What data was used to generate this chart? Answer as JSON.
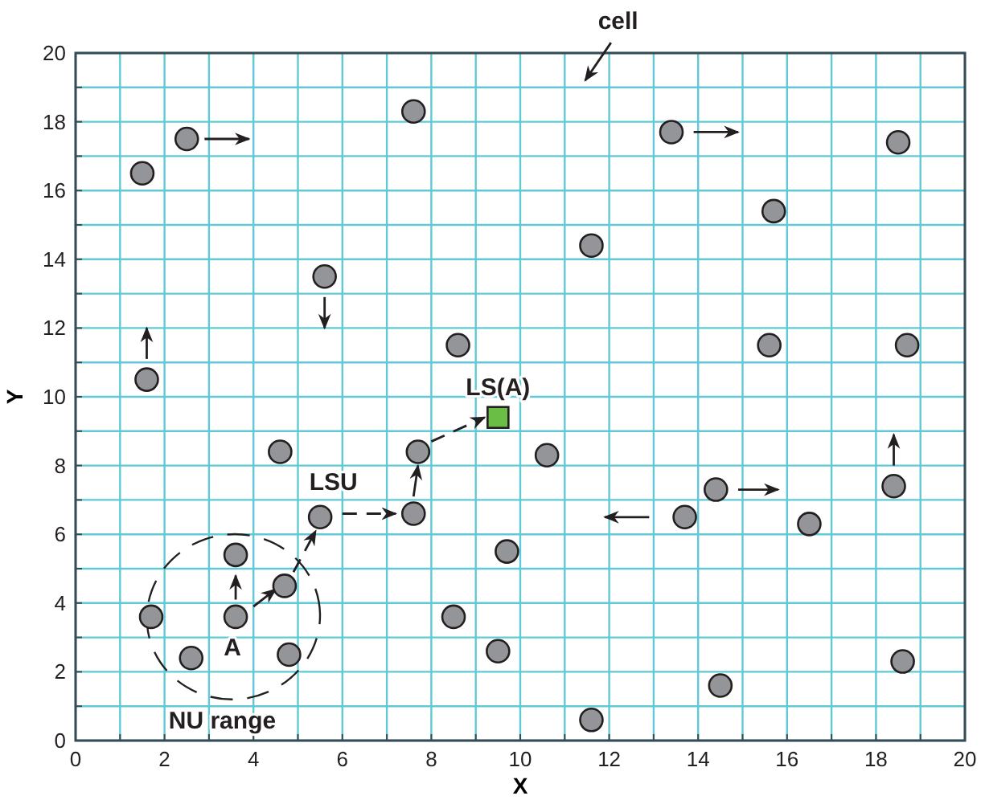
{
  "chart_data": {
    "type": "scatter",
    "xlabel": "X",
    "ylabel": "Y",
    "xlim": [
      0,
      20
    ],
    "ylim": [
      0,
      20
    ],
    "xticks": [
      0,
      {
        "value": 1,
        "label": null
      },
      2,
      {
        "value": 3,
        "label": null
      },
      4,
      {
        "value": 5,
        "label": null
      },
      6,
      {
        "value": 7,
        "label": null
      },
      8,
      {
        "value": 9,
        "label": null
      },
      10,
      {
        "value": 11,
        "label": null
      },
      12,
      {
        "value": 13,
        "label": null
      },
      14,
      {
        "value": 15,
        "label": null
      },
      16,
      {
        "value": 17,
        "label": null
      },
      18,
      {
        "value": 19,
        "label": null
      },
      20
    ],
    "yticks": [
      0,
      {
        "value": 1,
        "label": null
      },
      2,
      {
        "value": 3,
        "label": null
      },
      4,
      {
        "value": 5,
        "label": null
      },
      6,
      {
        "value": 7,
        "label": null
      },
      8,
      {
        "value": 9,
        "label": null
      },
      10,
      {
        "value": 11,
        "label": null
      },
      12,
      {
        "value": 13,
        "label": null
      },
      14,
      {
        "value": 15,
        "label": null
      },
      16,
      {
        "value": 17,
        "label": null
      },
      18,
      {
        "value": 19,
        "label": null
      },
      20
    ],
    "grid": true,
    "series": [
      {
        "color": "#939598",
        "marker": "circle",
        "x": [
          1.5,
          2.5,
          7.6,
          5.6,
          1.6,
          8.6,
          4.6,
          7.7,
          10.6,
          5.5,
          7.6,
          3.6,
          4.7,
          3.6,
          1.7,
          2.6,
          4.8,
          8.5,
          9.7,
          9.5,
          11.6,
          11.6,
          13.4,
          18.5,
          15.7,
          15.6,
          18.7,
          14.4,
          13.7,
          16.5,
          18.4,
          18.6,
          14.5
        ],
        "values": [
          16.5,
          17.5,
          18.3,
          13.5,
          10.5,
          11.5,
          8.4,
          8.4,
          8.3,
          6.5,
          6.6,
          5.4,
          4.5,
          3.6,
          3.6,
          2.4,
          2.5,
          3.6,
          5.5,
          2.6,
          0.6,
          14.4,
          17.7,
          17.4,
          15.4,
          11.5,
          11.5,
          7.3,
          6.5,
          6.3,
          7.4,
          2.3,
          1.6
        ]
      },
      {
        "color": "#6abd45",
        "marker": "square",
        "x": [
          9.5
        ],
        "values": [
          9.4
        ]
      }
    ],
    "annotations": [
      "cell",
      {
        "text": "LS(A)",
        "x": 9.5,
        "y": 9.4
      },
      "LSU",
      {
        "text": "A",
        "x": 3.6,
        "y": 3.6
      },
      "NU range"
    ]
  }
}
